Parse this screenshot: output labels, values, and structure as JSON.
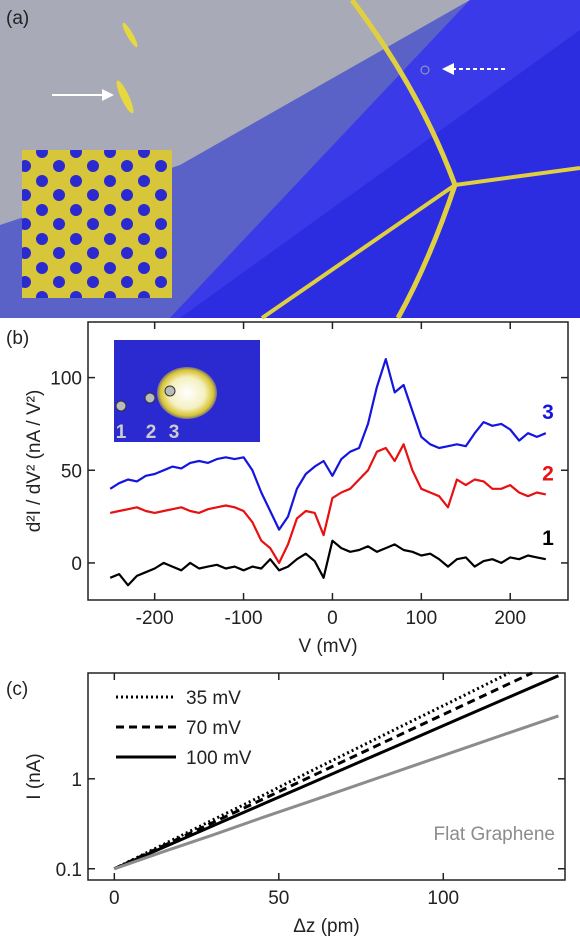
{
  "chart_data": [
    {
      "type": "image",
      "label": "(a)"
    },
    {
      "type": "line",
      "label": "(b)",
      "xlabel": "V (mV)",
      "ylabel": "d²I / dV² (nA / V²)",
      "inset_labels": [
        "1",
        "2",
        "3"
      ],
      "x": [
        -250,
        -240,
        -230,
        -220,
        -210,
        -200,
        -190,
        -180,
        -170,
        -160,
        -150,
        -140,
        -130,
        -120,
        -110,
        -100,
        -90,
        -80,
        -70,
        -60,
        -50,
        -40,
        -30,
        -20,
        -10,
        0,
        10,
        20,
        30,
        40,
        50,
        60,
        70,
        80,
        90,
        100,
        110,
        120,
        130,
        140,
        150,
        160,
        170,
        180,
        190,
        200,
        210,
        220,
        230,
        240
      ],
      "series": [
        {
          "name": "3",
          "color": "#1515e0",
          "values": [
            40,
            43,
            45,
            44,
            47,
            48,
            50,
            52,
            51,
            54,
            55,
            54,
            56,
            57,
            56,
            57,
            50,
            38,
            28,
            18,
            25,
            40,
            48,
            52,
            55,
            47,
            56,
            60,
            62,
            75,
            95,
            110,
            92,
            96,
            82,
            68,
            64,
            62,
            63,
            64,
            63,
            70,
            76,
            74,
            75,
            72,
            66,
            70,
            68,
            70
          ]
        },
        {
          "name": "2",
          "color": "#e81010",
          "values": [
            27,
            28,
            29,
            30,
            28,
            27,
            28,
            29,
            30,
            28,
            27,
            29,
            30,
            31,
            30,
            28,
            22,
            12,
            8,
            0,
            10,
            24,
            28,
            27,
            15,
            35,
            38,
            40,
            45,
            50,
            60,
            62,
            55,
            64,
            50,
            40,
            38,
            36,
            30,
            45,
            42,
            45,
            44,
            40,
            40,
            42,
            38,
            36,
            38,
            37
          ]
        },
        {
          "name": "1",
          "color": "#000000",
          "values": [
            -8,
            -6,
            -12,
            -7,
            -5,
            -3,
            0,
            -2,
            -4,
            0,
            -3,
            -2,
            -1,
            -3,
            -2,
            -4,
            -2,
            -3,
            2,
            -4,
            -2,
            2,
            5,
            1,
            -8,
            12,
            8,
            6,
            7,
            9,
            6,
            8,
            10,
            7,
            6,
            4,
            5,
            2,
            -2,
            2,
            3,
            -2,
            1,
            2,
            0,
            3,
            2,
            4,
            3,
            2
          ]
        }
      ],
      "xlim": [
        -275,
        265
      ],
      "xticks": [
        -200,
        -100,
        0,
        100,
        200
      ],
      "ylim": [
        -20,
        130
      ],
      "yticks": [
        0,
        50,
        100
      ]
    },
    {
      "type": "line",
      "label": "(c)",
      "xlabel": "Δz (pm)",
      "ylabel": "I (nA)",
      "log_y": true,
      "series": [
        {
          "name": "35 mV",
          "color": "#000000",
          "dash": "dotted",
          "x": [
            0,
            15,
            30,
            45,
            60,
            75,
            90,
            105,
            120
          ],
          "values": [
            0.1,
            0.187,
            0.35,
            0.65,
            1.23,
            2.3,
            4.3,
            8.0,
            15
          ]
        },
        {
          "name": "70 mV",
          "color": "#000000",
          "dash": "dashed",
          "x": [
            0,
            15,
            30,
            45,
            60,
            75,
            90,
            105,
            120,
            127
          ],
          "values": [
            0.1,
            0.181,
            0.327,
            0.59,
            1.07,
            1.93,
            3.5,
            6.3,
            11.4,
            15
          ]
        },
        {
          "name": "100 mV",
          "color": "#000000",
          "dash": "solid",
          "x": [
            0,
            15,
            30,
            45,
            60,
            75,
            90,
            105,
            120,
            135
          ],
          "values": [
            0.1,
            0.173,
            0.3,
            0.52,
            0.9,
            1.56,
            2.7,
            4.68,
            8.1,
            14
          ]
        },
        {
          "name": "Flat Graphene",
          "color": "#8c8c8c",
          "dash": "solid",
          "x": [
            0,
            15,
            30,
            45,
            60,
            75,
            90,
            105,
            120,
            135
          ],
          "values": [
            0.1,
            0.155,
            0.238,
            0.37,
            0.57,
            0.88,
            1.36,
            2.1,
            3.25,
            5.0
          ]
        }
      ],
      "xlim": [
        -8,
        137
      ],
      "xticks": [
        0,
        50,
        100
      ],
      "ylim": [
        0.075,
        15
      ],
      "yticks": [
        0.1,
        1
      ]
    }
  ]
}
